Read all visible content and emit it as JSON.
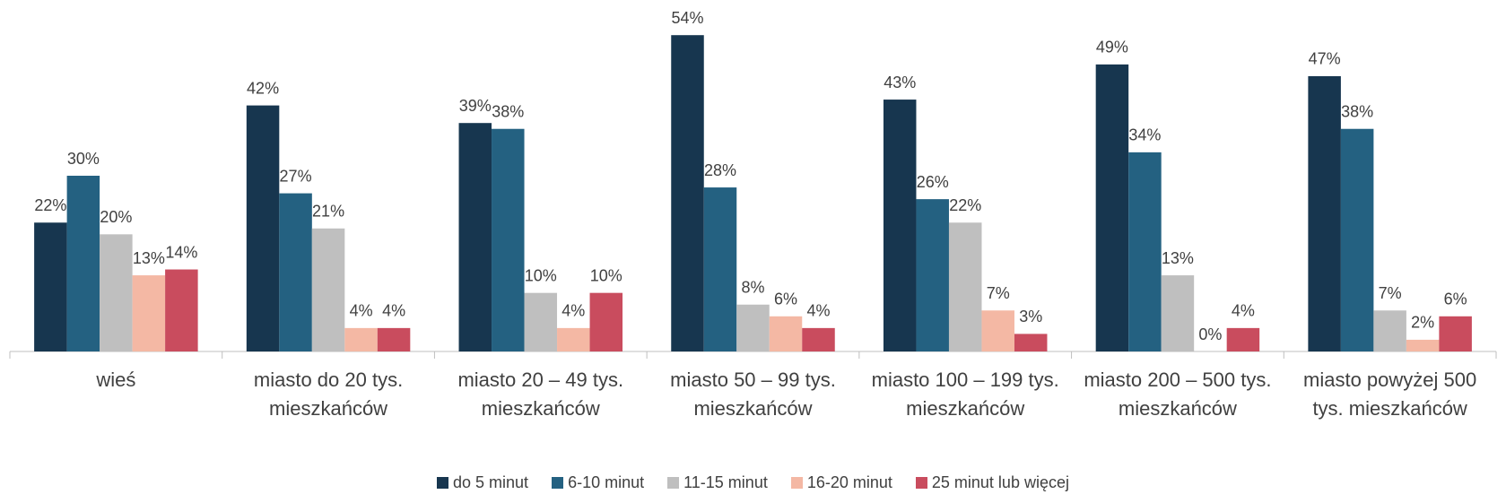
{
  "chart_data": {
    "type": "bar",
    "categories": [
      "wieś",
      "miasto do 20 tys. mieszkańców",
      "miasto 20 – 49 tys. mieszkańców",
      "miasto 50 – 99 tys. mieszkańców",
      "miasto 100 – 199 tys. mieszkańców",
      "miasto 200 – 500 tys. mieszkańców",
      "miasto powyżej 500 tys. mieszkańców"
    ],
    "series": [
      {
        "name": "do 5 minut",
        "color": "#17364f",
        "values": [
          22,
          42,
          39,
          54,
          43,
          49,
          47
        ],
        "value_labels": [
          "22%",
          "42%",
          "39%",
          "54%",
          "43%",
          "49%",
          "47%"
        ]
      },
      {
        "name": "6-10 minut",
        "color": "#246181",
        "values": [
          30,
          27,
          38,
          28,
          26,
          34,
          38
        ],
        "value_labels": [
          "30%",
          "27%",
          "38%",
          "28%",
          "26%",
          "34%",
          "38%"
        ]
      },
      {
        "name": "11-15 minut",
        "color": "#bfbfbf",
        "values": [
          20,
          21,
          10,
          8,
          22,
          13,
          7
        ],
        "value_labels": [
          "20%",
          "21%",
          "10%",
          "8%",
          "22%",
          "13%",
          "7%"
        ]
      },
      {
        "name": "16-20 minut",
        "color": "#f4b8a4",
        "values": [
          13,
          4,
          4,
          6,
          7,
          0,
          2
        ],
        "value_labels": [
          "13%",
          "4%",
          "4%",
          "6%",
          "7%",
          "0%",
          "2%"
        ]
      },
      {
        "name": "25 minut lub więcej",
        "color": "#c94c5e",
        "values": [
          14,
          4,
          10,
          4,
          3,
          4,
          6
        ],
        "value_labels": [
          "14%",
          "4%",
          "10%",
          "4%",
          "3%",
          "4%",
          "6%"
        ]
      }
    ],
    "ylim": [
      0,
      60
    ],
    "legend": "bottom"
  }
}
